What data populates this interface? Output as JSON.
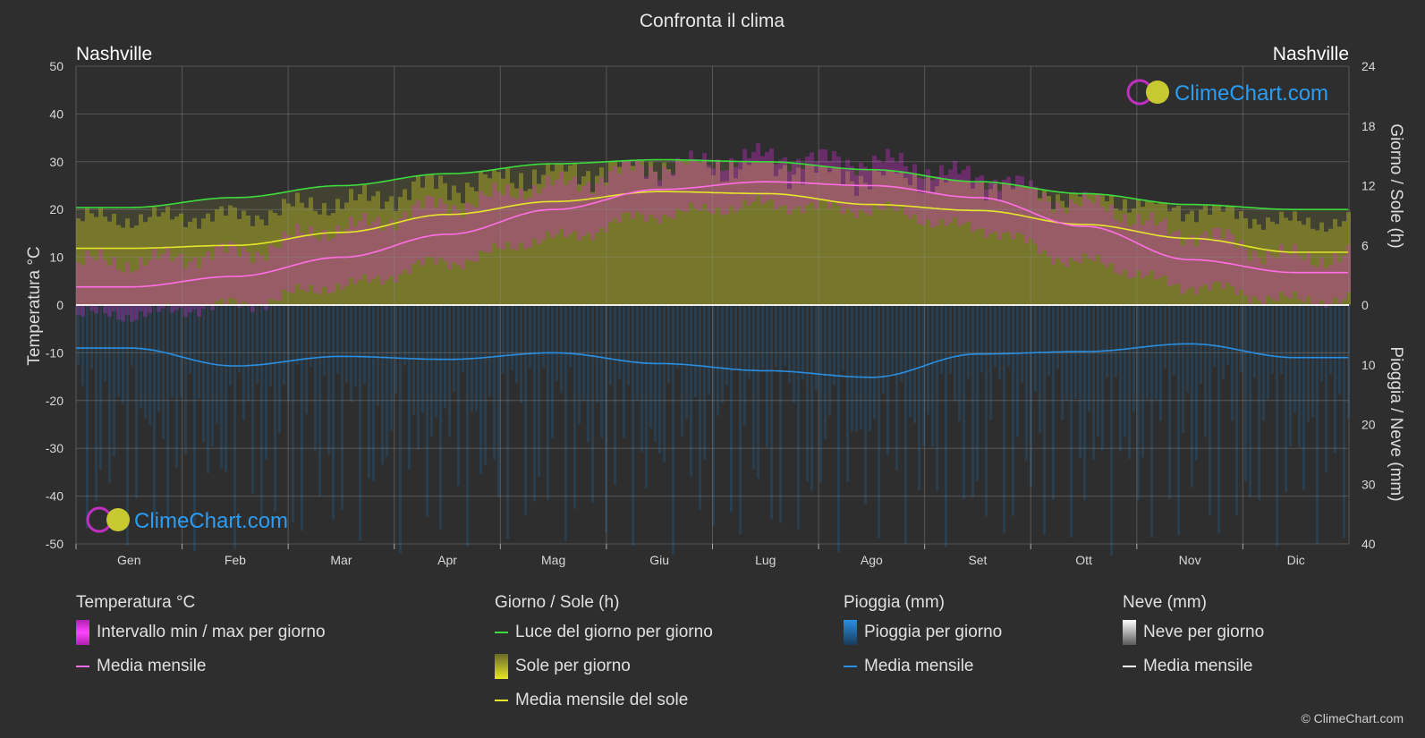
{
  "title": "Confronta il clima",
  "city_left": "Nashville",
  "city_right": "Nashville",
  "left_axis_label": "Temperatura °C",
  "right_axis_label_top": "Giorno / Sole (h)",
  "right_axis_label_bottom": "Pioggia / Neve (mm)",
  "watermark": "ClimeChart.com",
  "copyright": "© ClimeChart.com",
  "colors": {
    "background": "#2e2e2e",
    "daylight": "#3ddc3d",
    "sun_mean": "#e6e62a",
    "temp_mean": "#ff6ee6",
    "rain_mean": "#2a8fe0",
    "temp_band": "#d42ad4",
    "sun_band": "#8a8a2a",
    "rain_band": "#1f5f8f",
    "watermark": "#2a9df4"
  },
  "legend": {
    "temperature": {
      "title": "Temperatura °C",
      "items": [
        "Intervallo min / max per giorno",
        "Media mensile"
      ]
    },
    "sun": {
      "title": "Giorno / Sole (h)",
      "items": [
        "Luce del giorno per giorno",
        "Sole per giorno",
        "Media mensile del sole"
      ]
    },
    "rain": {
      "title": "Pioggia (mm)",
      "items": [
        "Pioggia per giorno",
        "Media mensile"
      ]
    },
    "snow": {
      "title": "Neve (mm)",
      "items": [
        "Neve per giorno",
        "Media mensile"
      ]
    }
  },
  "chart_data": {
    "type": "line",
    "title": "Confronta il clima",
    "categories": [
      "Gen",
      "Feb",
      "Mar",
      "Apr",
      "Mag",
      "Giu",
      "Lug",
      "Ago",
      "Set",
      "Ott",
      "Nov",
      "Dic"
    ],
    "y_left": {
      "label": "Temperatura °C",
      "range": [
        -50,
        50
      ],
      "ticks": [
        50,
        40,
        30,
        20,
        10,
        0,
        -10,
        -20,
        -30,
        -40,
        -50
      ]
    },
    "y_right_top": {
      "label": "Giorno / Sole (h)",
      "range": [
        0,
        24
      ],
      "ticks": [
        24,
        18,
        12,
        6,
        0
      ]
    },
    "y_right_bottom": {
      "label": "Pioggia / Neve (mm)",
      "range": [
        0,
        40
      ],
      "ticks": [
        0,
        10,
        20,
        30,
        40
      ]
    },
    "grid": true,
    "series": [
      {
        "name": "Luce del giorno per giorno",
        "axis": "hours",
        "values": [
          9.8,
          10.8,
          12.0,
          13.2,
          14.2,
          14.6,
          14.4,
          13.6,
          12.4,
          11.2,
          10.1,
          9.6
        ]
      },
      {
        "name": "Media mensile del sole",
        "axis": "hours",
        "values": [
          5.7,
          6.0,
          7.3,
          9.1,
          10.4,
          11.4,
          11.2,
          10.1,
          9.5,
          8.1,
          6.7,
          5.3
        ]
      },
      {
        "name": "Media mensile",
        "axis": "temperature",
        "values": [
          3.8,
          6.0,
          10.0,
          14.8,
          20.0,
          24.2,
          25.8,
          25.0,
          22.5,
          16.5,
          9.5,
          6.8
        ]
      },
      {
        "name": "Media mensile",
        "axis": "precipitation",
        "values": [
          7.2,
          10.2,
          8.6,
          9.1,
          8.0,
          9.8,
          11.0,
          12.1,
          8.2,
          7.8,
          6.5,
          8.8
        ]
      }
    ],
    "temp_band_max": [
      9,
      11,
      16,
      21,
      25,
      29,
      31,
      30,
      27,
      21,
      15,
      10
    ],
    "temp_band_min": [
      -2,
      0,
      4,
      9,
      14,
      19,
      21,
      20,
      16,
      9,
      4,
      1
    ]
  }
}
